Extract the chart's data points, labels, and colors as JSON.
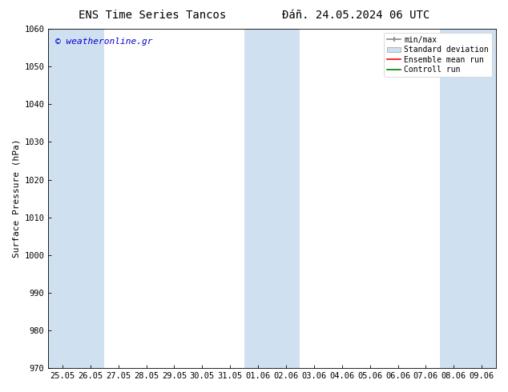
{
  "title_left": "ENS Time Series Tancos",
  "title_right": "Đáñ. 24.05.2024 06 UTC",
  "ylabel": "Surface Pressure (hPa)",
  "ylim": [
    970,
    1060
  ],
  "yticks": [
    970,
    980,
    990,
    1000,
    1010,
    1020,
    1030,
    1040,
    1050,
    1060
  ],
  "watermark": "© weatheronline.gr",
  "watermark_color": "#0000cc",
  "bg_color": "#ffffff",
  "plot_bg_color": "#ffffff",
  "shaded_color": "#cfe0f0",
  "legend_labels": [
    "min/max",
    "Standard deviation",
    "Ensemble mean run",
    "Controll run"
  ],
  "legend_colors": [
    "#999999",
    "#cce0f0",
    "#ff0000",
    "#008000"
  ],
  "x_labels": [
    "25.05",
    "26.05",
    "27.05",
    "28.05",
    "29.05",
    "30.05",
    "31.05",
    "01.06",
    "02.06",
    "03.06",
    "04.06",
    "05.06",
    "06.06",
    "07.06",
    "08.06",
    "09.06"
  ],
  "shaded_ranges": [
    [
      0.5,
      2.5
    ],
    [
      7.5,
      9.5
    ],
    [
      14.5,
      16.5
    ]
  ],
  "title_fontsize": 10,
  "ylabel_fontsize": 8,
  "tick_fontsize": 7.5,
  "legend_fontsize": 7,
  "watermark_fontsize": 8
}
